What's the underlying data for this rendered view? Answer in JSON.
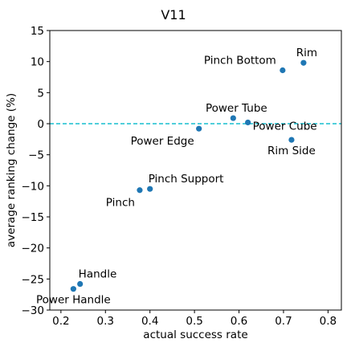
{
  "chart_data": {
    "type": "scatter",
    "title": "V11",
    "xlabel": "actual success rate",
    "ylabel": "average ranking change (%)",
    "xlim": [
      0.175,
      0.83
    ],
    "ylim": [
      -30,
      15
    ],
    "xticks": [
      0.2,
      0.3,
      0.4,
      0.5,
      0.6,
      0.7,
      0.8
    ],
    "xtick_labels": [
      "0.2",
      "0.3",
      "0.4",
      "0.5",
      "0.6",
      "0.7",
      "0.8"
    ],
    "yticks": [
      -30,
      -25,
      -20,
      -15,
      -10,
      -5,
      0,
      5,
      10,
      15
    ],
    "ytick_labels": [
      "−30",
      "−25",
      "−20",
      "−15",
      "−10",
      "−5",
      "0",
      "5",
      "10",
      "15"
    ],
    "grid": false,
    "reference_line": {
      "y": 0,
      "style": "dashed",
      "color": "#17becf"
    },
    "marker_color": "#1f77b4",
    "points": [
      {
        "label": "Rim",
        "x": 0.745,
        "y": 9.8,
        "label_pos": "above"
      },
      {
        "label": "Pinch Bottom",
        "x": 0.698,
        "y": 8.6,
        "label_pos": "above-left"
      },
      {
        "label": "Power Tube",
        "x": 0.587,
        "y": 0.9,
        "label_pos": "above"
      },
      {
        "label": "Power Cube",
        "x": 0.62,
        "y": 0.2,
        "label_pos": "below-right"
      },
      {
        "label": "Power Edge",
        "x": 0.51,
        "y": -0.8,
        "label_pos": "below-left"
      },
      {
        "label": "Rim Side",
        "x": 0.718,
        "y": -2.6,
        "label_pos": "below"
      },
      {
        "label": "Pinch Support",
        "x": 0.4,
        "y": -10.5,
        "label_pos": "above-right"
      },
      {
        "label": "Pinch",
        "x": 0.377,
        "y": -10.7,
        "label_pos": "below-left"
      },
      {
        "label": "Handle",
        "x": 0.243,
        "y": -25.8,
        "label_pos": "above-right"
      },
      {
        "label": "Power Handle",
        "x": 0.228,
        "y": -26.6,
        "label_pos": "below"
      }
    ]
  }
}
